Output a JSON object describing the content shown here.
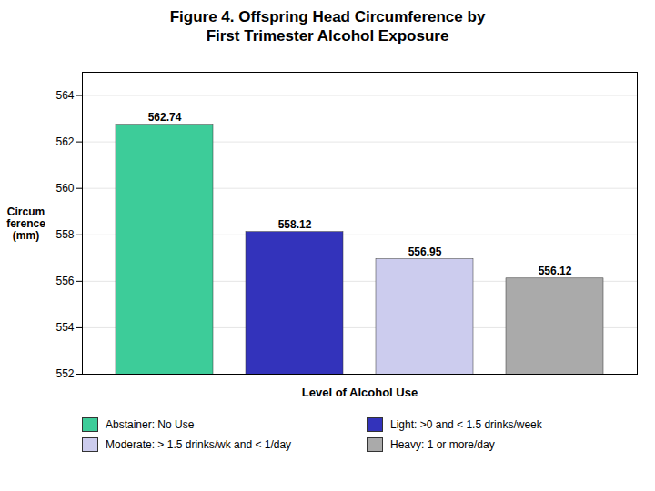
{
  "chart_data": {
    "type": "bar",
    "title": "Figure 4. Offspring Head Circumference by\nFirst Trimester Alcohol Exposure",
    "categories": [
      "Abstainer",
      "Light",
      "Moderate",
      "Heavy"
    ],
    "values": [
      562.74,
      558.12,
      556.95,
      556.12
    ],
    "colors": [
      "#3DCC99",
      "#3333BB",
      "#CCCCEE",
      "#AAAAAA"
    ],
    "data_labels": true,
    "xlabel": "Level of Alcohol Use",
    "ylabel": "Circum\nference\n(mm)",
    "ylim": [
      552,
      565
    ],
    "yticks": [
      552,
      554,
      556,
      558,
      560,
      562,
      564
    ],
    "grid": true,
    "tick_labels": "y",
    "legend": "bottom",
    "legend_labels": [
      "Abstainer: No Use",
      "Light: >0 and < 1.5 drinks/week",
      "Moderate: > 1.5 drinks/wk and < 1/day",
      "Heavy: 1 or more/day"
    ]
  }
}
